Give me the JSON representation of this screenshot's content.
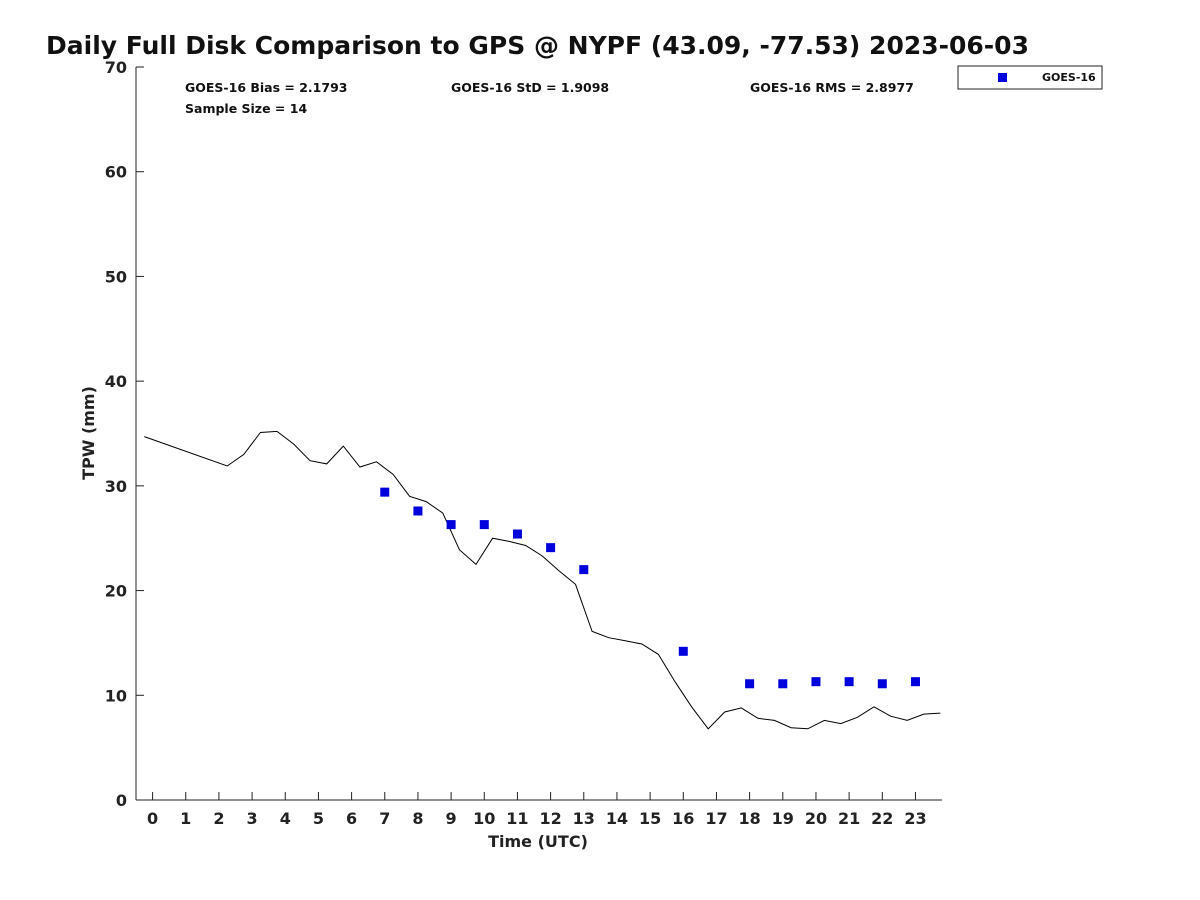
{
  "chart_data": {
    "type": "scatter",
    "title": "Daily Full Disk Comparison to GPS @ NYPF (43.09, -77.53) 2023-06-03",
    "xlabel": "Time (UTC)",
    "ylabel": "TPW (mm)",
    "xlim": [
      -0.5,
      23.8
    ],
    "ylim": [
      0,
      70
    ],
    "x_ticks": [
      0,
      1,
      2,
      3,
      4,
      5,
      6,
      7,
      8,
      9,
      10,
      11,
      12,
      13,
      14,
      15,
      16,
      17,
      18,
      19,
      20,
      21,
      22,
      23
    ],
    "y_ticks": [
      0,
      10,
      20,
      30,
      40,
      50,
      60,
      70
    ],
    "grid": false,
    "legend_position": "top-right outside",
    "stats": {
      "bias": "GOES-16 Bias = 2.1793",
      "std": "GOES-16 StD = 1.9098",
      "rms": "GOES-16 RMS = 2.8977",
      "sample": "Sample Size = 14"
    },
    "series": [
      {
        "name": "GOES-16",
        "kind": "scatter",
        "color": "#0000dd",
        "marker": "square",
        "x": [
          7,
          8,
          9,
          10,
          11,
          12,
          13,
          16,
          18,
          19,
          20,
          21,
          22,
          23
        ],
        "y": [
          29.4,
          27.6,
          26.3,
          26.3,
          25.4,
          24.1,
          22.0,
          14.2,
          11.1,
          11.1,
          11.3,
          11.3,
          11.1,
          11.3
        ]
      },
      {
        "kind": "line",
        "color": "#000000",
        "x": [
          -0.25,
          2.25,
          2.75,
          3.25,
          3.75,
          4.25,
          4.75,
          5.25,
          5.75,
          6.25,
          6.75,
          7.25,
          7.75,
          8.25,
          8.75,
          9.25,
          9.75,
          10.25,
          10.75,
          11.25,
          11.75,
          12.25,
          12.75,
          13.25,
          13.75,
          14.25,
          14.75,
          15.25,
          15.75,
          16.25,
          16.75,
          17.25,
          17.75,
          18.25,
          18.75,
          19.25,
          19.75,
          20.25,
          20.75,
          21.25,
          21.75,
          22.25,
          22.75,
          23.25,
          23.75
        ],
        "y": [
          34.7,
          31.9,
          33.0,
          35.1,
          35.2,
          34.0,
          32.4,
          32.1,
          33.8,
          31.8,
          32.3,
          31.1,
          29.0,
          28.5,
          27.4,
          23.9,
          22.5,
          25.0,
          24.7,
          24.3,
          23.3,
          21.9,
          20.6,
          16.1,
          15.5,
          15.2,
          14.9,
          13.9,
          11.3,
          8.9,
          6.8,
          8.4,
          8.8,
          7.8,
          7.6,
          6.9,
          6.8,
          7.6,
          7.3,
          7.9,
          8.9,
          8.0,
          7.6,
          8.2,
          8.3
        ]
      }
    ]
  }
}
